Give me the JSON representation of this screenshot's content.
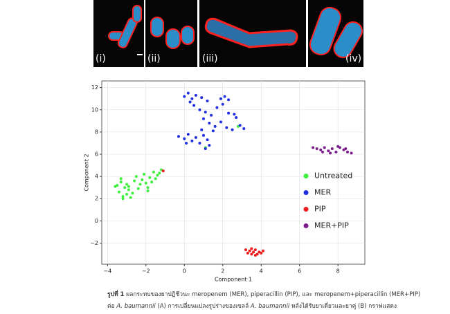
{
  "figure": {
    "panels": [
      "(i)",
      "(ii)",
      "(iii)",
      "(iv)"
    ]
  },
  "chart_data": {
    "type": "scatter",
    "xlabel": "Component 1",
    "ylabel": "Component 2",
    "xlim": [
      -4.3,
      9.4
    ],
    "ylim": [
      -3.9,
      12.6
    ],
    "xticks": [
      {
        "value": -4,
        "label": "−4"
      },
      {
        "value": -2,
        "label": "−2"
      },
      0,
      2,
      4,
      6,
      8
    ],
    "yticks": [
      {
        "value": -2,
        "label": "−2"
      },
      0,
      2,
      4,
      6,
      8,
      10,
      12
    ],
    "grid": true,
    "legend": "center right",
    "series": [
      {
        "name": "Untreated",
        "color": "#3ef03e",
        "x": [
          -3.5,
          -3.4,
          -3.3,
          -3.2,
          -3.1,
          -3.0,
          -2.9,
          -2.8,
          -3.6,
          -3.3,
          -3.0,
          -2.7,
          -2.6,
          -2.5,
          -2.4,
          -2.2,
          -2.1,
          -2.0,
          -1.9,
          -1.8,
          -1.7,
          -1.6,
          -1.5,
          -1.4,
          -1.3,
          -3.2,
          -2.9,
          -2.3,
          -1.9,
          -1.2,
          1.1,
          2.8
        ],
        "y": [
          3.2,
          2.6,
          3.5,
          2.2,
          3.0,
          2.4,
          2.8,
          2.1,
          3.1,
          3.8,
          3.3,
          2.5,
          3.6,
          4.0,
          2.9,
          3.7,
          4.2,
          3.4,
          2.7,
          3.9,
          3.5,
          4.4,
          3.8,
          4.1,
          4.3,
          2.0,
          3.1,
          3.3,
          3.0,
          4.6,
          6.6,
          8.5
        ]
      },
      {
        "name": "MER",
        "color": "#1f2fe0",
        "x": [
          0.0,
          0.2,
          0.4,
          0.6,
          0.9,
          1.2,
          0.5,
          0.8,
          1.1,
          1.4,
          1.0,
          1.3,
          1.6,
          1.9,
          2.2,
          2.5,
          1.9,
          2.1,
          2.3,
          2.0,
          2.6,
          2.7,
          1.7,
          2.3,
          0.3,
          1.5,
          -0.3,
          0.0,
          0.2,
          0.4,
          0.6,
          0.8,
          1.0,
          1.2,
          1.3,
          0.9,
          1.1,
          0.1,
          3.1,
          2.9
        ],
        "y": [
          11.2,
          11.5,
          11.0,
          11.3,
          11.1,
          10.8,
          10.4,
          10.0,
          9.8,
          9.5,
          9.2,
          8.8,
          8.5,
          8.9,
          8.4,
          8.2,
          11.0,
          11.2,
          10.9,
          10.5,
          9.6,
          9.3,
          10.2,
          9.7,
          10.7,
          8.1,
          7.6,
          7.4,
          7.8,
          7.2,
          7.5,
          7.0,
          7.7,
          7.3,
          6.8,
          8.2,
          6.5,
          7.0,
          8.3,
          8.6
        ]
      },
      {
        "name": "PIP",
        "color": "#ee1c1c",
        "x": [
          3.2,
          3.3,
          3.4,
          3.5,
          3.6,
          3.7,
          3.8,
          3.9,
          4.0,
          4.1,
          3.5,
          3.7,
          -1.1
        ],
        "y": [
          -2.6,
          -2.9,
          -2.7,
          -3.0,
          -2.8,
          -2.6,
          -3.0,
          -2.8,
          -2.9,
          -2.7,
          -2.5,
          -3.1,
          4.5
        ]
      },
      {
        "name": "MER+PIP",
        "color": "#7b1e8c",
        "x": [
          6.7,
          6.9,
          7.1,
          7.3,
          7.5,
          7.7,
          7.9,
          8.1,
          8.3,
          8.5,
          8.7,
          8.0,
          7.6,
          8.4,
          7.2
        ],
        "y": [
          6.6,
          6.5,
          6.4,
          6.6,
          6.3,
          6.5,
          6.2,
          6.6,
          6.4,
          6.2,
          6.1,
          6.7,
          6.1,
          6.5,
          6.2
        ]
      }
    ]
  },
  "caption": {
    "label": "รูปที่ 1",
    "line1": "ผลกระทบของยาปฏิชีวนะ meropenem (MER), piperacillin (PIP), และ meropenem+piperacillin (MER+PIP)",
    "line2": [
      "ต่อ ",
      "A. baumannii",
      " (A) การเปลี่ยนแปลงรูปร่างของเซลล์ ",
      "A. baumannii",
      " หลังได้รับยาเดี่ยวและยาคู่ (B) กราฟแสดง"
    ]
  }
}
